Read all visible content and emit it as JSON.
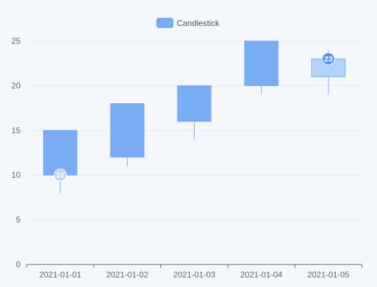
{
  "chart_data": {
    "type": "candlestick",
    "legend": {
      "label": "Candlestick",
      "placement": "top-center",
      "color": "#7aacf4"
    },
    "categories": [
      "2021-01-01",
      "2021-01-02",
      "2021-01-03",
      "2021-01-04",
      "2021-01-05"
    ],
    "series": [
      {
        "name": "Candlestick",
        "values": [
          {
            "open": 10,
            "close": 15,
            "low": 8,
            "high": 15
          },
          {
            "open": 12,
            "close": 18,
            "low": 11,
            "high": 18
          },
          {
            "open": 16,
            "close": 20,
            "low": 14,
            "high": 20
          },
          {
            "open": 20,
            "close": 25,
            "low": 19,
            "high": 25
          },
          {
            "open": 21,
            "close": 23,
            "low": 19,
            "high": 24
          }
        ]
      }
    ],
    "ylim": [
      0,
      25
    ],
    "yticks": [
      "0",
      "5",
      "10",
      "15",
      "20",
      "25"
    ],
    "grid": true,
    "markers": [
      {
        "category": "2021-01-01",
        "value": 10,
        "label": "10"
      },
      {
        "category": "2021-01-05",
        "value": 23,
        "label": "23"
      }
    ],
    "colors": {
      "candle": "#7aacf4",
      "candle_highlight": "#b3d3fa",
      "wick": "#7aacf4",
      "marker_low": "#b9d6f8",
      "marker_high": "#5b95e6",
      "grid": "#e3ebf5",
      "axis": "#5b6675"
    }
  }
}
